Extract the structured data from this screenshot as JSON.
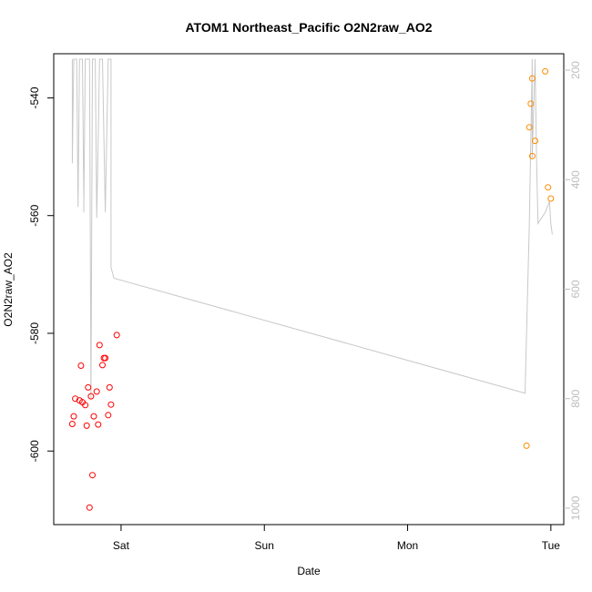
{
  "chart_data": {
    "type": "scatter",
    "title": "ATOM1 Northeast_Pacific O2N2raw_AO2",
    "xlabel": "Date",
    "ylabel": "O2N2raw_AO2",
    "x_ticks": [
      "Sat",
      "Sun",
      "Mon",
      "Tue"
    ],
    "x_tick_days": [
      1,
      2,
      3,
      4
    ],
    "xlim_days": [
      0.53,
      4.09
    ],
    "ylim": [
      -612.5,
      -532.5
    ],
    "y_ticks": [
      -540,
      -560,
      -580,
      -600
    ],
    "y2lim": [
      1030,
      170
    ],
    "y2_ticks": [
      200,
      400,
      600,
      800,
      1000
    ],
    "grid": false,
    "legend": "none",
    "colors": {
      "series_red": "#ff0000",
      "series_orange": "#ff8c00",
      "line_gray": "#c8c8c8",
      "axis": "#000000",
      "right_axis": "#bdbdbd"
    },
    "series": [
      {
        "color": "#ff0000",
        "points": [
          {
            "x": 0.66,
            "y": -595.4
          },
          {
            "x": 0.67,
            "y": -594.1
          },
          {
            "x": 0.68,
            "y": -591.1
          },
          {
            "x": 0.71,
            "y": -591.4
          },
          {
            "x": 0.72,
            "y": -585.5
          },
          {
            "x": 0.73,
            "y": -591.7
          },
          {
            "x": 0.75,
            "y": -592.2
          },
          {
            "x": 0.76,
            "y": -595.7
          },
          {
            "x": 0.77,
            "y": -589.2
          },
          {
            "x": 0.78,
            "y": -609.6
          },
          {
            "x": 0.79,
            "y": -590.7
          },
          {
            "x": 0.8,
            "y": -604.1
          },
          {
            "x": 0.81,
            "y": -594.1
          },
          {
            "x": 0.83,
            "y": -589.9
          },
          {
            "x": 0.84,
            "y": -595.5
          },
          {
            "x": 0.85,
            "y": -582.0
          },
          {
            "x": 0.87,
            "y": -585.4
          },
          {
            "x": 0.88,
            "y": -584.2
          },
          {
            "x": 0.89,
            "y": -584.2
          },
          {
            "x": 0.91,
            "y": -593.9
          },
          {
            "x": 0.92,
            "y": -589.2
          },
          {
            "x": 0.93,
            "y": -592.1
          },
          {
            "x": 0.97,
            "y": -580.3
          }
        ]
      },
      {
        "color": "#ff8c00",
        "points": [
          {
            "x": 3.83,
            "y": -599.1
          },
          {
            "x": 3.85,
            "y": -545.0
          },
          {
            "x": 3.86,
            "y": -541.0
          },
          {
            "x": 3.87,
            "y": -549.9
          },
          {
            "x": 3.87,
            "y": -536.7
          },
          {
            "x": 3.89,
            "y": -547.3
          },
          {
            "x": 3.96,
            "y": -535.5
          },
          {
            "x": 3.98,
            "y": -555.2
          },
          {
            "x": 4.0,
            "y": -557.1
          }
        ]
      }
    ],
    "line_series": {
      "axis": "right",
      "color": "#c8c8c8",
      "points": [
        [
          0.66,
          180
        ],
        [
          0.66,
          370
        ],
        [
          0.67,
          180
        ],
        [
          0.69,
          180
        ],
        [
          0.7,
          450
        ],
        [
          0.71,
          180
        ],
        [
          0.73,
          180
        ],
        [
          0.74,
          430
        ],
        [
          0.74,
          460
        ],
        [
          0.75,
          180
        ],
        [
          0.78,
          180
        ],
        [
          0.79,
          800
        ],
        [
          0.8,
          180
        ],
        [
          0.82,
          180
        ],
        [
          0.83,
          470
        ],
        [
          0.84,
          330
        ],
        [
          0.85,
          180
        ],
        [
          0.87,
          180
        ],
        [
          0.89,
          460
        ],
        [
          0.91,
          180
        ],
        [
          0.93,
          180
        ],
        [
          0.93,
          560
        ],
        [
          0.95,
          580
        ],
        [
          3.82,
          790
        ],
        [
          3.85,
          480
        ],
        [
          3.87,
          180
        ],
        [
          3.87,
          360
        ],
        [
          3.89,
          180
        ],
        [
          3.9,
          360
        ],
        [
          3.91,
          480
        ],
        [
          3.96,
          460
        ],
        [
          3.99,
          440
        ],
        [
          4.0,
          480
        ],
        [
          4.01,
          500
        ]
      ]
    }
  }
}
